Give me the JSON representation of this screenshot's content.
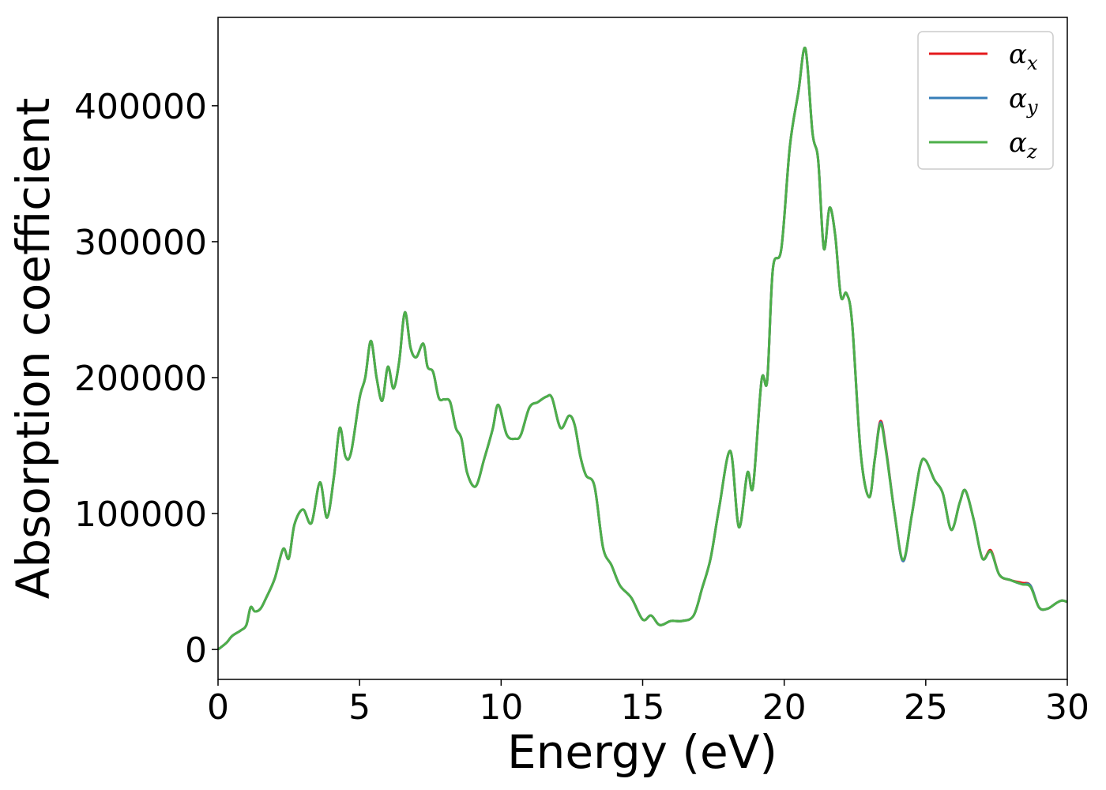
{
  "chart_data": {
    "type": "line",
    "xlabel": "Energy (eV)",
    "ylabel": "Absorption coefficient",
    "xlim": [
      0,
      30
    ],
    "ylim": [
      -22000,
      465000
    ],
    "xticks": [
      0,
      5,
      10,
      15,
      20,
      25,
      30
    ],
    "yticks": [
      0,
      100000,
      200000,
      300000,
      400000
    ],
    "grid": false,
    "legend_position": "top-right",
    "legend": [
      {
        "symbol": "α",
        "subscript": "x",
        "color": "#e41a1c"
      },
      {
        "symbol": "α",
        "subscript": "y",
        "color": "#377eb8"
      },
      {
        "symbol": "α",
        "subscript": "z",
        "color": "#4daf4a"
      }
    ],
    "x": [
      0,
      0.3,
      0.5,
      0.8,
      1.0,
      1.15,
      1.3,
      1.5,
      1.7,
      2.0,
      2.3,
      2.5,
      2.7,
      3.0,
      3.3,
      3.6,
      3.85,
      4.1,
      4.3,
      4.5,
      4.7,
      5.0,
      5.2,
      5.4,
      5.6,
      5.8,
      6.0,
      6.2,
      6.4,
      6.6,
      6.8,
      7.0,
      7.25,
      7.4,
      7.6,
      7.8,
      8.0,
      8.2,
      8.4,
      8.6,
      8.8,
      9.1,
      9.4,
      9.7,
      9.9,
      10.2,
      10.5,
      10.7,
      11.0,
      11.3,
      11.6,
      11.8,
      12.1,
      12.4,
      12.6,
      12.8,
      13.0,
      13.3,
      13.6,
      13.9,
      14.2,
      14.6,
      15.0,
      15.3,
      15.6,
      16.0,
      16.4,
      16.8,
      17.1,
      17.4,
      17.7,
      18.1,
      18.4,
      18.7,
      18.9,
      19.2,
      19.4,
      19.6,
      19.9,
      20.2,
      20.5,
      20.75,
      21.0,
      21.2,
      21.4,
      21.6,
      21.8,
      22.0,
      22.2,
      22.4,
      22.7,
      23.0,
      23.2,
      23.4,
      23.6,
      23.9,
      24.2,
      24.5,
      24.8,
      25.0,
      25.3,
      25.6,
      25.9,
      26.2,
      26.4,
      26.7,
      27.0,
      27.3,
      27.6,
      28.0,
      28.4,
      28.7,
      29.0,
      29.3,
      29.6,
      29.8,
      30.0
    ],
    "series": [
      {
        "values": [
          0,
          5000,
          10000,
          14000,
          18000,
          31000,
          28000,
          30000,
          38000,
          52000,
          74000,
          67000,
          92000,
          103000,
          93000,
          123000,
          97000,
          128000,
          163000,
          142000,
          145000,
          185000,
          200000,
          227000,
          200000,
          183000,
          208000,
          192000,
          212000,
          248000,
          222000,
          215000,
          225000,
          208000,
          204000,
          185000,
          184000,
          182000,
          163000,
          155000,
          130000,
          120000,
          140000,
          162000,
          180000,
          158000,
          155000,
          158000,
          178000,
          182000,
          186000,
          185000,
          163000,
          172000,
          165000,
          142000,
          128000,
          120000,
          75000,
          62000,
          47000,
          38000,
          22000,
          25000,
          18000,
          21000,
          21000,
          25000,
          45000,
          67000,
          104000,
          146000,
          90000,
          130000,
          120000,
          198000,
          198000,
          280000,
          295000,
          370000,
          410000,
          442000,
          380000,
          360000,
          295000,
          325000,
          305000,
          260000,
          262000,
          240000,
          145000,
          112000,
          140000,
          168000,
          147000,
          100000,
          65000,
          98000,
          135000,
          139000,
          125000,
          115000,
          88000,
          108000,
          117000,
          95000,
          67000,
          73000,
          55000,
          51000,
          49000,
          47000,
          31000,
          30000,
          34000,
          36000,
          35000
        ]
      },
      {
        "values": [
          0,
          5000,
          10000,
          14000,
          18000,
          31000,
          28000,
          30000,
          38000,
          52000,
          74000,
          67000,
          92000,
          103000,
          93000,
          123000,
          97000,
          128000,
          163000,
          142000,
          145000,
          185000,
          200000,
          227000,
          200000,
          183000,
          208000,
          192000,
          212000,
          248000,
          222000,
          215000,
          225000,
          208000,
          204000,
          185000,
          184000,
          182000,
          163000,
          155000,
          130000,
          120000,
          140000,
          162000,
          180000,
          158000,
          155000,
          158000,
          178000,
          182000,
          186000,
          185000,
          163000,
          172000,
          165000,
          142000,
          128000,
          120000,
          75000,
          62000,
          47000,
          38000,
          22000,
          25000,
          18000,
          21000,
          21000,
          25000,
          45000,
          67000,
          104000,
          146000,
          90000,
          130000,
          120000,
          198000,
          198000,
          280000,
          295000,
          370000,
          410000,
          442000,
          380000,
          360000,
          295000,
          325000,
          305000,
          260000,
          262000,
          240000,
          145000,
          112000,
          140000,
          167000,
          146000,
          100000,
          65000,
          98000,
          135000,
          139000,
          125000,
          115000,
          88000,
          108000,
          117000,
          95000,
          67000,
          72000,
          55000,
          51000,
          48000,
          47000,
          31000,
          30000,
          34000,
          36000,
          35000
        ]
      },
      {
        "values": [
          0,
          5000,
          10000,
          14000,
          18000,
          31000,
          28000,
          30000,
          38000,
          52000,
          74000,
          67000,
          92000,
          103000,
          93000,
          123000,
          97000,
          128000,
          163000,
          142000,
          145000,
          185000,
          200000,
          227000,
          200000,
          183000,
          208000,
          192000,
          212000,
          248000,
          222000,
          215000,
          225000,
          208000,
          204000,
          185000,
          184000,
          182000,
          163000,
          155000,
          130000,
          120000,
          140000,
          162000,
          180000,
          158000,
          155000,
          158000,
          178000,
          182000,
          186000,
          185000,
          163000,
          172000,
          165000,
          142000,
          128000,
          120000,
          75000,
          62000,
          47000,
          38000,
          22000,
          25000,
          18000,
          21000,
          21000,
          25000,
          45000,
          67000,
          104000,
          146000,
          90000,
          130000,
          120000,
          198000,
          198000,
          280000,
          295000,
          370000,
          410000,
          442000,
          380000,
          360000,
          295000,
          325000,
          305000,
          260000,
          262000,
          240000,
          145000,
          112000,
          140000,
          166000,
          145000,
          100000,
          66000,
          98000,
          135000,
          139000,
          125000,
          115000,
          88000,
          108000,
          117000,
          95000,
          67000,
          72000,
          55000,
          51000,
          48000,
          46000,
          31000,
          30000,
          34000,
          36000,
          35000
        ]
      }
    ]
  }
}
